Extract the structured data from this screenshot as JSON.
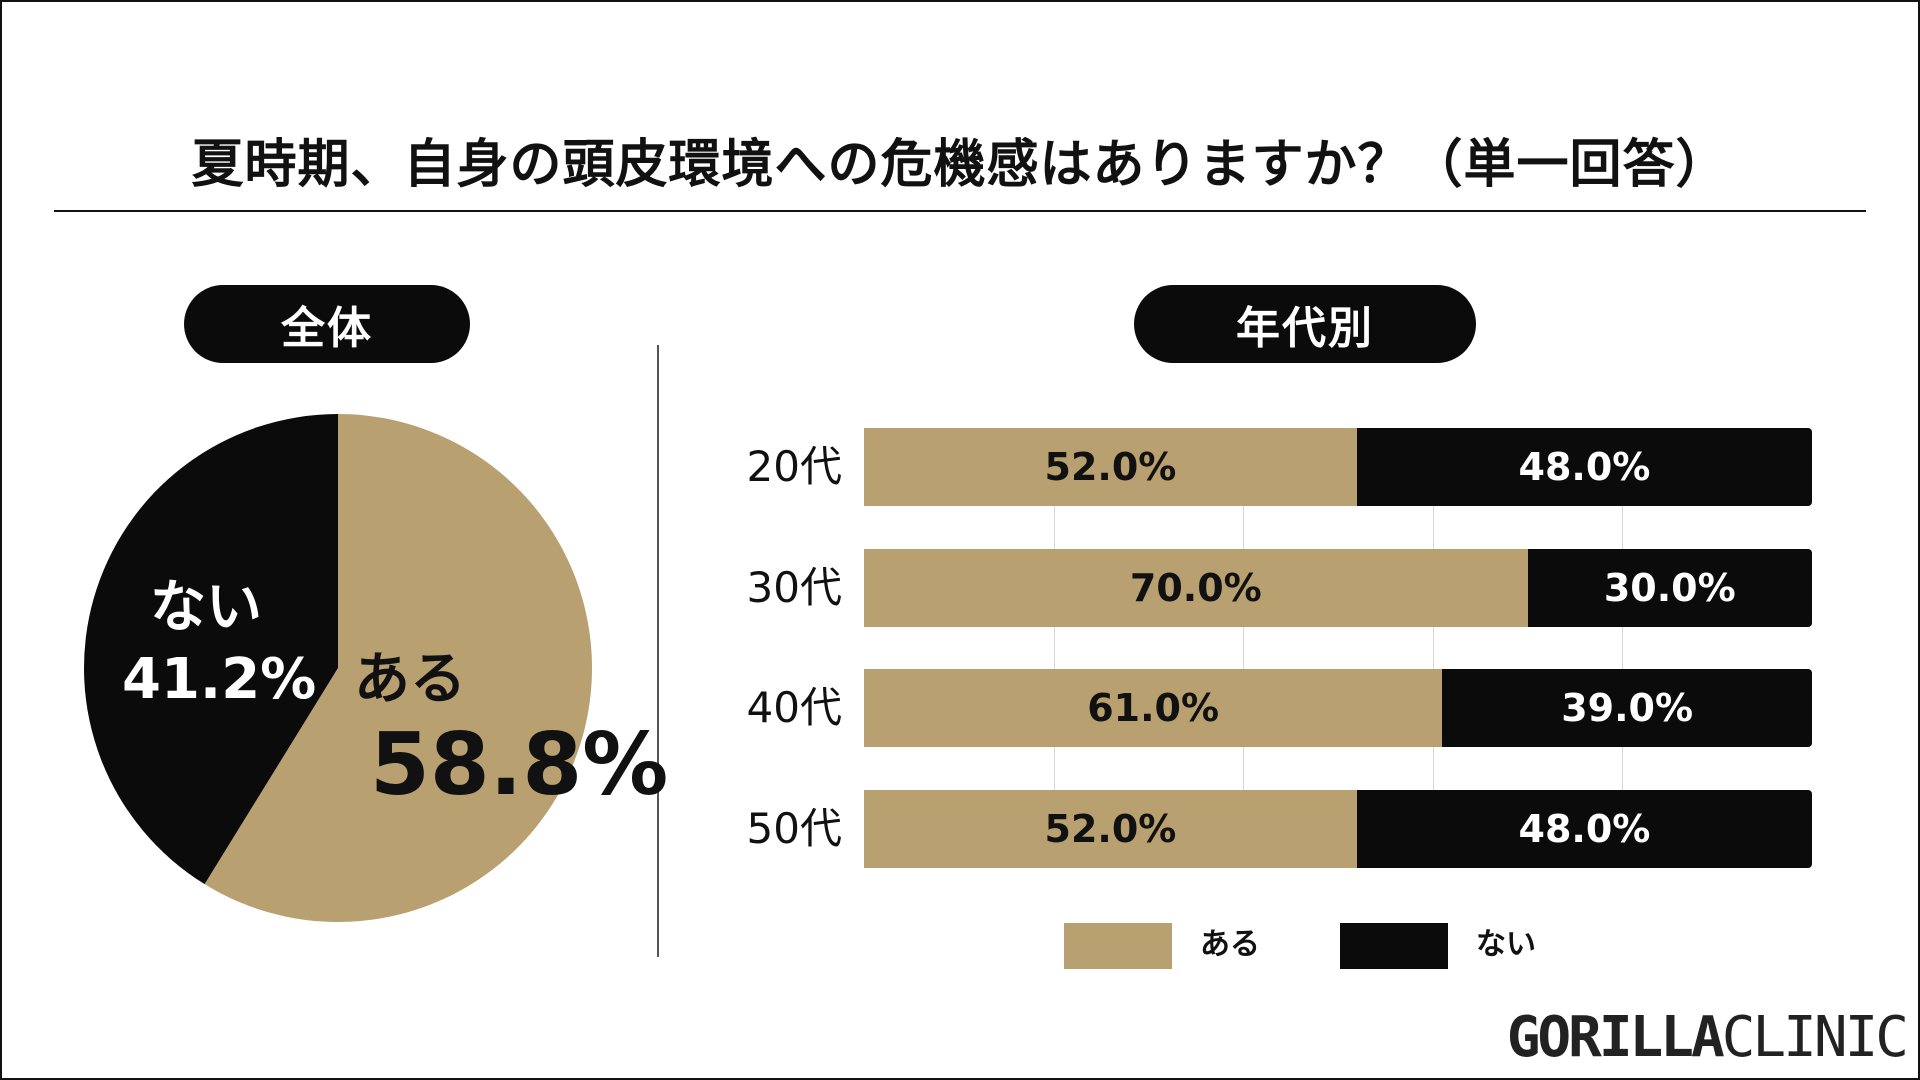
{
  "title": "夏時期、自身の頭皮環境への危機感はありますか？（単一回答）",
  "colors": {
    "aru": "#b8a071",
    "nai": "#0b0b0b"
  },
  "overall": {
    "header": "全体",
    "aru_label": "ある",
    "aru_value": "58.8%",
    "nai_label": "ない",
    "nai_value": "41.2%"
  },
  "by_age": {
    "header": "年代別"
  },
  "legend": {
    "aru": "ある",
    "nai": "ない"
  },
  "logo": {
    "bold": "GORILLA",
    "light": "CLINIC"
  },
  "chart_data": [
    {
      "type": "pie",
      "title": "全体",
      "labels": [
        "ある",
        "ない"
      ],
      "values": [
        58.8,
        41.2
      ],
      "unit": "%"
    },
    {
      "type": "bar",
      "orientation": "horizontal",
      "stacked": true,
      "title": "年代別",
      "categories": [
        "20代",
        "30代",
        "40代",
        "50代"
      ],
      "series": [
        {
          "name": "ある",
          "values": [
            52.0,
            70.0,
            61.0,
            52.0
          ],
          "labels": [
            "52.0%",
            "70.0%",
            "61.0%",
            "52.0%"
          ]
        },
        {
          "name": "ない",
          "values": [
            48.0,
            30.0,
            39.0,
            48.0
          ],
          "labels": [
            "48.0%",
            "30.0%",
            "39.0%",
            "48.0%"
          ]
        }
      ],
      "xlim": [
        0,
        100
      ],
      "legend_position": "bottom"
    }
  ]
}
